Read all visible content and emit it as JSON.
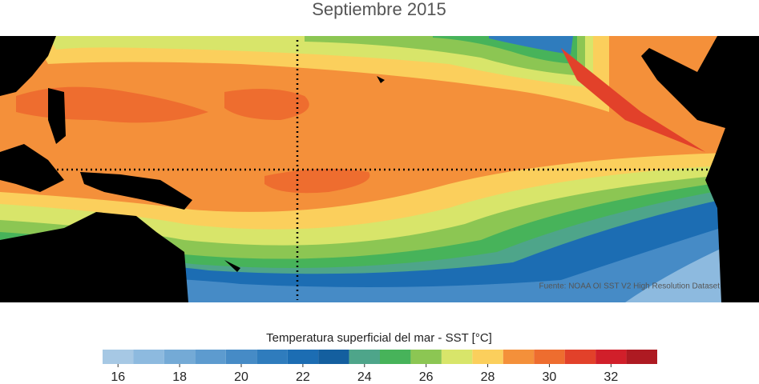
{
  "title": "Septiembre 2015",
  "source": "Fuente: NOAA OI SST V2 High Resolution Dataset",
  "colorbar": {
    "title": "Temperatura superficial del mar - SST  [°C]",
    "colors": [
      "#a6c8e4",
      "#8dbadf",
      "#74aad6",
      "#5d9bcf",
      "#468bc6",
      "#2f7cbd",
      "#1c6db3",
      "#145f9f",
      "#4ea58a",
      "#47b35a",
      "#8cc653",
      "#d8e56a",
      "#fbcf5c",
      "#f4903a",
      "#ee6d2f",
      "#e2412a",
      "#d11f2a",
      "#ae1a22"
    ],
    "bounds": [
      15.5,
      16.5,
      17.5,
      18.5,
      19.5,
      20.5,
      21.5,
      22.5,
      23.5,
      24.5,
      25.5,
      26.5,
      27.5,
      28.5,
      29.5,
      30.5,
      31.5,
      32.5,
      33.5
    ],
    "xlim": [
      15.5,
      33.5
    ],
    "xticks": [
      16,
      18,
      20,
      22,
      24,
      26,
      28,
      30,
      32
    ]
  }
}
